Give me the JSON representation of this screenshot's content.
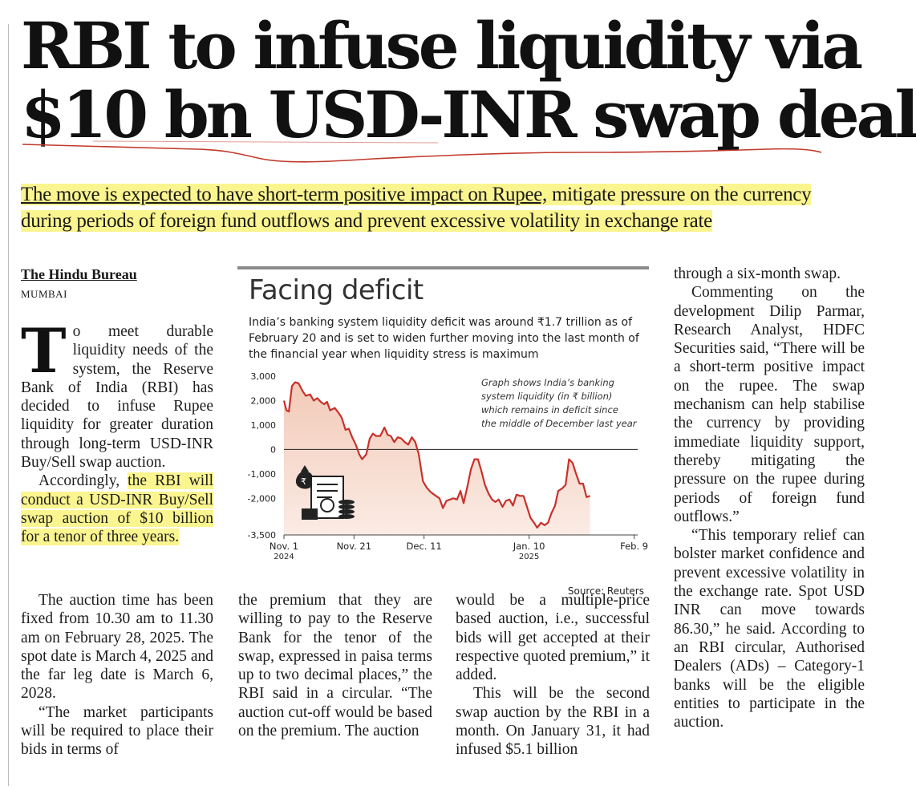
{
  "headline": {
    "line1": "RBI to infuse liquidity via",
    "line2": "$10 bn USD-INR swap deal"
  },
  "deck": {
    "part1": "The move is expected to have short-term positive impact on Rupee,",
    "part2": " mitigate pressure on the currency during periods of foreign fund outflows and prevent excessive volatility in exchange rate"
  },
  "byline": {
    "name": "The Hindu Bureau",
    "place": "MUMBAI"
  },
  "body": {
    "dropcap": "T",
    "p1": "o meet durable liquidity needs of the system, the Reserve Bank of India (RBI) has decided to infuse Rupee liquidity for greater duration through long-term USD-INR Buy/Sell swap auction.",
    "p2a": "Accordingly, ",
    "p2b": "the RBI will conduct a USD-INR Buy/Sell swap auction of $10 billion for a tenor of three years.",
    "p3": "The auction time has been fixed from 10.30 am to 11.30 am on February 28, 2025. The spot date is March 4, 2025 and the far leg date is March 6, 2028.",
    "p4": "“The market participants will be required to place their bids in terms of",
    "col2": "the premium that they are willing to pay to the Reserve Bank for the tenor of the swap, expressed in paisa terms up to two decimal places,” the RBI said in a circular. “The auction cut-off would be based on the premium. The auction",
    "col3a": "would be a multiple-price based auction, i.e., successful bids will get accepted at their respective quoted premium,” it added.",
    "col3b": "This will be the second swap auction by the RBI in a month. On January 31, it had infused $5.1 billion",
    "col4a": "through a six-month swap.",
    "col4b": "Commenting on the development Dilip Parmar, Research Analyst, HDFC Securities said, “There will be a short-term positive impact on the rupee. The swap mechanism can help stabilise the currency by providing immediate liquidity support, thereby mitigating the pressure on the rupee during periods of foreign fund outflows.”",
    "col4c": "“This temporary relief can bolster market confidence and prevent excessive volatility in the exchange rate. Spot USD INR can move towards 86.30,” he said. According to an RBI circular, Authorised Dealers (ADs) – Category-1 banks will be the eligible entities to participate in the auction."
  },
  "chart_data": {
    "type": "area",
    "title": "Facing deficit",
    "subtitle": "India’s banking system liquidity deficit was around ₹1.7 trillion as of February 20 and is set to widen further moving into the last month of the financial year when liquidity stress is maximum",
    "annotation": "Graph shows India’s banking system liquidity (in ₹ billion) which remains in deficit since the middle of December last year",
    "source": "Source: Reuters",
    "y_ticks": [
      "3,000",
      "2,000",
      "1,000",
      "0",
      "-1,000",
      "-2,000",
      "-3,500"
    ],
    "y_tick_values": [
      3000,
      2000,
      1000,
      0,
      -1000,
      -2000,
      -3500
    ],
    "x_ticks": [
      {
        "label": "Nov. 1",
        "sub": "2024",
        "day": 0
      },
      {
        "label": "Nov. 21",
        "sub": "",
        "day": 20
      },
      {
        "label": "Dec. 11",
        "sub": "",
        "day": 40
      },
      {
        "label": "Jan. 10",
        "sub": "2025",
        "day": 70
      },
      {
        "label": "Feb. 9",
        "sub": "",
        "day": 100
      }
    ],
    "ylim": [
      -3500,
      3000
    ],
    "xlim": [
      0,
      101
    ],
    "fill_color": "#f2c7b4",
    "line_color": "#c8312b",
    "series": [
      {
        "values": [
          [
            0,
            2000
          ],
          [
            0.7,
            1600
          ],
          [
            1.4,
            1550
          ],
          [
            2.3,
            2600
          ],
          [
            3.2,
            2750
          ],
          [
            4.2,
            2700
          ],
          [
            5.3,
            2400
          ],
          [
            6.2,
            2200
          ],
          [
            7.5,
            2250
          ],
          [
            8.5,
            2000
          ],
          [
            9.5,
            2100
          ],
          [
            10.5,
            1950
          ],
          [
            11.5,
            1850
          ],
          [
            12.3,
            1950
          ],
          [
            13.2,
            1600
          ],
          [
            14.5,
            1700
          ],
          [
            15.6,
            1500
          ],
          [
            16.5,
            1300
          ],
          [
            17.6,
            800
          ],
          [
            18.5,
            850
          ],
          [
            19.5,
            500
          ],
          [
            20.5,
            200
          ],
          [
            21.5,
            -200
          ],
          [
            22.3,
            -400
          ],
          [
            23.5,
            -200
          ],
          [
            24.5,
            450
          ],
          [
            25.4,
            650
          ],
          [
            26.3,
            550
          ],
          [
            27.5,
            550
          ],
          [
            28.7,
            900
          ],
          [
            29.6,
            600
          ],
          [
            30.5,
            550
          ],
          [
            31.5,
            300
          ],
          [
            32.5,
            500
          ],
          [
            33.5,
            450
          ],
          [
            34.5,
            300
          ],
          [
            35.5,
            200
          ],
          [
            36.5,
            500
          ],
          [
            37.5,
            300
          ],
          [
            38.5,
            -200
          ],
          [
            39.7,
            -1300
          ],
          [
            40.7,
            -1550
          ],
          [
            41.6,
            -1700
          ],
          [
            42.4,
            -1800
          ],
          [
            43.4,
            -1900
          ],
          [
            44.4,
            -2000
          ],
          [
            45.4,
            -2400
          ],
          [
            46.4,
            -2100
          ],
          [
            47.4,
            -2050
          ],
          [
            48.4,
            -2000
          ],
          [
            49.4,
            -2050
          ],
          [
            50.4,
            -1700
          ],
          [
            51.3,
            -2200
          ],
          [
            52.4,
            -1500
          ],
          [
            53.4,
            -800
          ],
          [
            54.4,
            -400
          ],
          [
            55.4,
            -400
          ],
          [
            56.4,
            -900
          ],
          [
            57.4,
            -1450
          ],
          [
            58.4,
            -1800
          ],
          [
            59.4,
            -2050
          ],
          [
            60.4,
            -2150
          ],
          [
            61.3,
            -2050
          ],
          [
            62.4,
            -2350
          ],
          [
            63.4,
            -2100
          ],
          [
            64.4,
            -2050
          ],
          [
            65.4,
            -2300
          ],
          [
            66.4,
            -1850
          ],
          [
            67.4,
            -1900
          ],
          [
            68.4,
            -1900
          ],
          [
            69.4,
            -2350
          ],
          [
            70.4,
            -2800
          ],
          [
            71.4,
            -3000
          ],
          [
            72.3,
            -3200
          ],
          [
            73.4,
            -3000
          ],
          [
            74.4,
            -3100
          ],
          [
            75.4,
            -3000
          ],
          [
            76.4,
            -2600
          ],
          [
            77.4,
            -2300
          ],
          [
            78.3,
            -1700
          ],
          [
            79.4,
            -1600
          ],
          [
            80.4,
            -1450
          ],
          [
            81.4,
            -400
          ],
          [
            82.4,
            -550
          ],
          [
            83.4,
            -1000
          ],
          [
            84.4,
            -1400
          ],
          [
            85.4,
            -1400
          ],
          [
            86.4,
            -1950
          ],
          [
            87.4,
            -1900
          ]
        ]
      }
    ]
  }
}
